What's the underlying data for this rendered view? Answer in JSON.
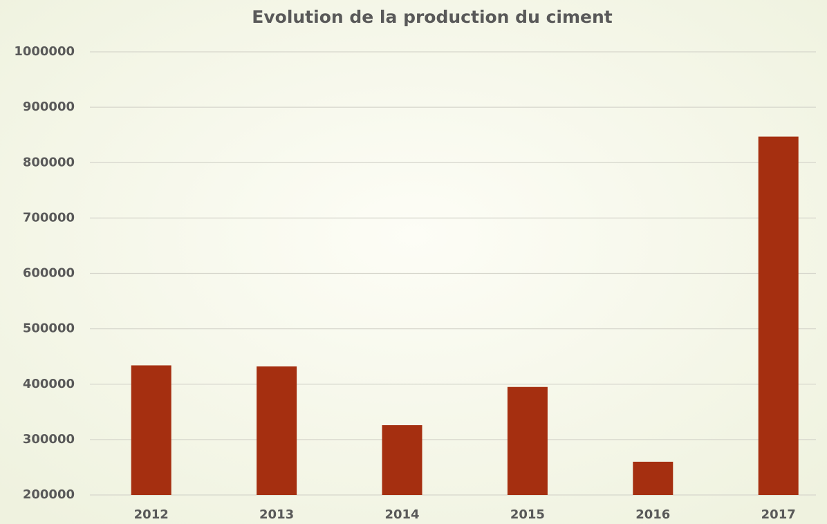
{
  "chart_data": {
    "type": "bar",
    "title": "Evolution de la production du ciment",
    "categories": [
      "2012",
      "2013",
      "2014",
      "2015",
      "2016",
      "2017"
    ],
    "values": [
      434000,
      432000,
      326000,
      395000,
      260000,
      847000
    ],
    "color": "#a52f10",
    "ylim": [
      200000,
      1000000
    ],
    "yticks": [
      200000,
      300000,
      400000,
      500000,
      600000,
      700000,
      800000,
      900000,
      1000000
    ],
    "grid": true
  }
}
